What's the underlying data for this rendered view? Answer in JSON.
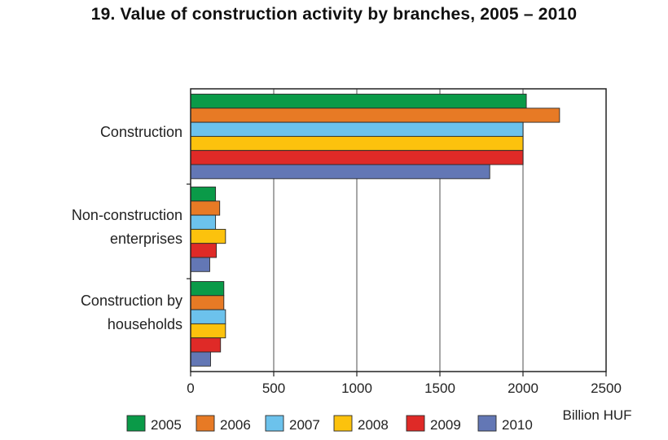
{
  "title": "19. Value of construction activity by branches, 2005 – 2010",
  "chart_data": {
    "type": "bar",
    "orientation": "horizontal",
    "title": "19. Value of construction activity by branches, 2005 – 2010",
    "xlabel": "Billion HUF",
    "ylabel": "",
    "xlim": [
      0,
      2500
    ],
    "xticks": [
      0,
      500,
      1000,
      1500,
      2000,
      2500
    ],
    "grid": "vertical",
    "legend_position": "bottom",
    "categories": [
      [
        "Construction"
      ],
      [
        "Non-construction",
        "enterprises"
      ],
      [
        "Construction by",
        "households"
      ]
    ],
    "series": [
      {
        "name": "2005",
        "color": "#0a9a48",
        "values": [
          2020,
          150,
          200
        ]
      },
      {
        "name": "2006",
        "color": "#e77a25",
        "values": [
          2220,
          175,
          200
        ]
      },
      {
        "name": "2007",
        "color": "#6cc2ec",
        "values": [
          2000,
          150,
          210
        ]
      },
      {
        "name": "2008",
        "color": "#fcc20d",
        "values": [
          2000,
          210,
          210
        ]
      },
      {
        "name": "2009",
        "color": "#df2a27",
        "values": [
          2000,
          155,
          180
        ]
      },
      {
        "name": "2010",
        "color": "#6377b5",
        "values": [
          1800,
          115,
          120
        ]
      }
    ]
  }
}
